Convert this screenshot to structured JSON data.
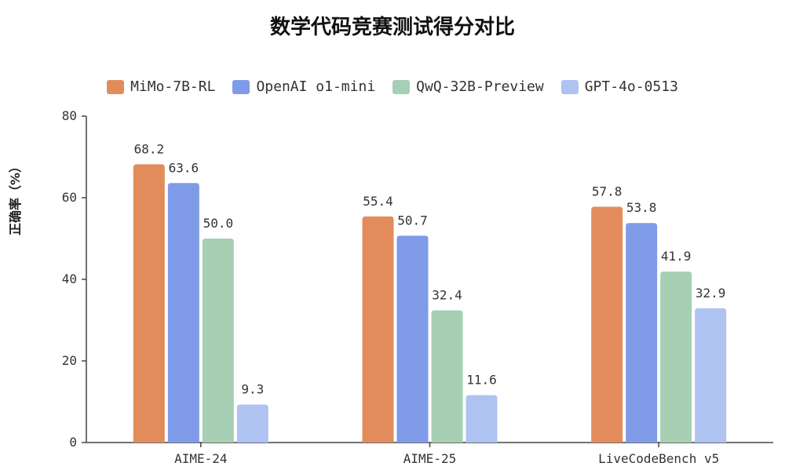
{
  "chart_data": {
    "type": "bar",
    "title": "数学代码竞赛测试得分对比",
    "ylabel": "正确率（%）",
    "xlabel": "",
    "categories": [
      "AIME-24",
      "AIME-25",
      "LiveCodeBench v5"
    ],
    "ylim": [
      0,
      80
    ],
    "yticks": [
      0,
      20,
      40,
      60,
      80
    ],
    "legend_position": "top-center",
    "series": [
      {
        "name": "MiMo-7B-RL",
        "color": "#e28c5b",
        "values": [
          68.2,
          55.4,
          57.8
        ],
        "labels": [
          "68.2",
          "55.4",
          "57.8"
        ]
      },
      {
        "name": "OpenAI o1-mini",
        "color": "#7f9be8",
        "values": [
          63.6,
          50.7,
          53.8
        ],
        "labels": [
          "63.6",
          "50.7",
          "53.8"
        ]
      },
      {
        "name": "QwQ-32B-Preview",
        "color": "#a6cfb4",
        "values": [
          50.0,
          32.4,
          41.9
        ],
        "labels": [
          "50.0",
          "32.4",
          "41.9"
        ]
      },
      {
        "name": "GPT-4o-0513",
        "color": "#aec3f2",
        "values": [
          9.3,
          11.6,
          32.9
        ],
        "labels": [
          "9.3",
          "11.6",
          "32.9"
        ]
      }
    ]
  }
}
